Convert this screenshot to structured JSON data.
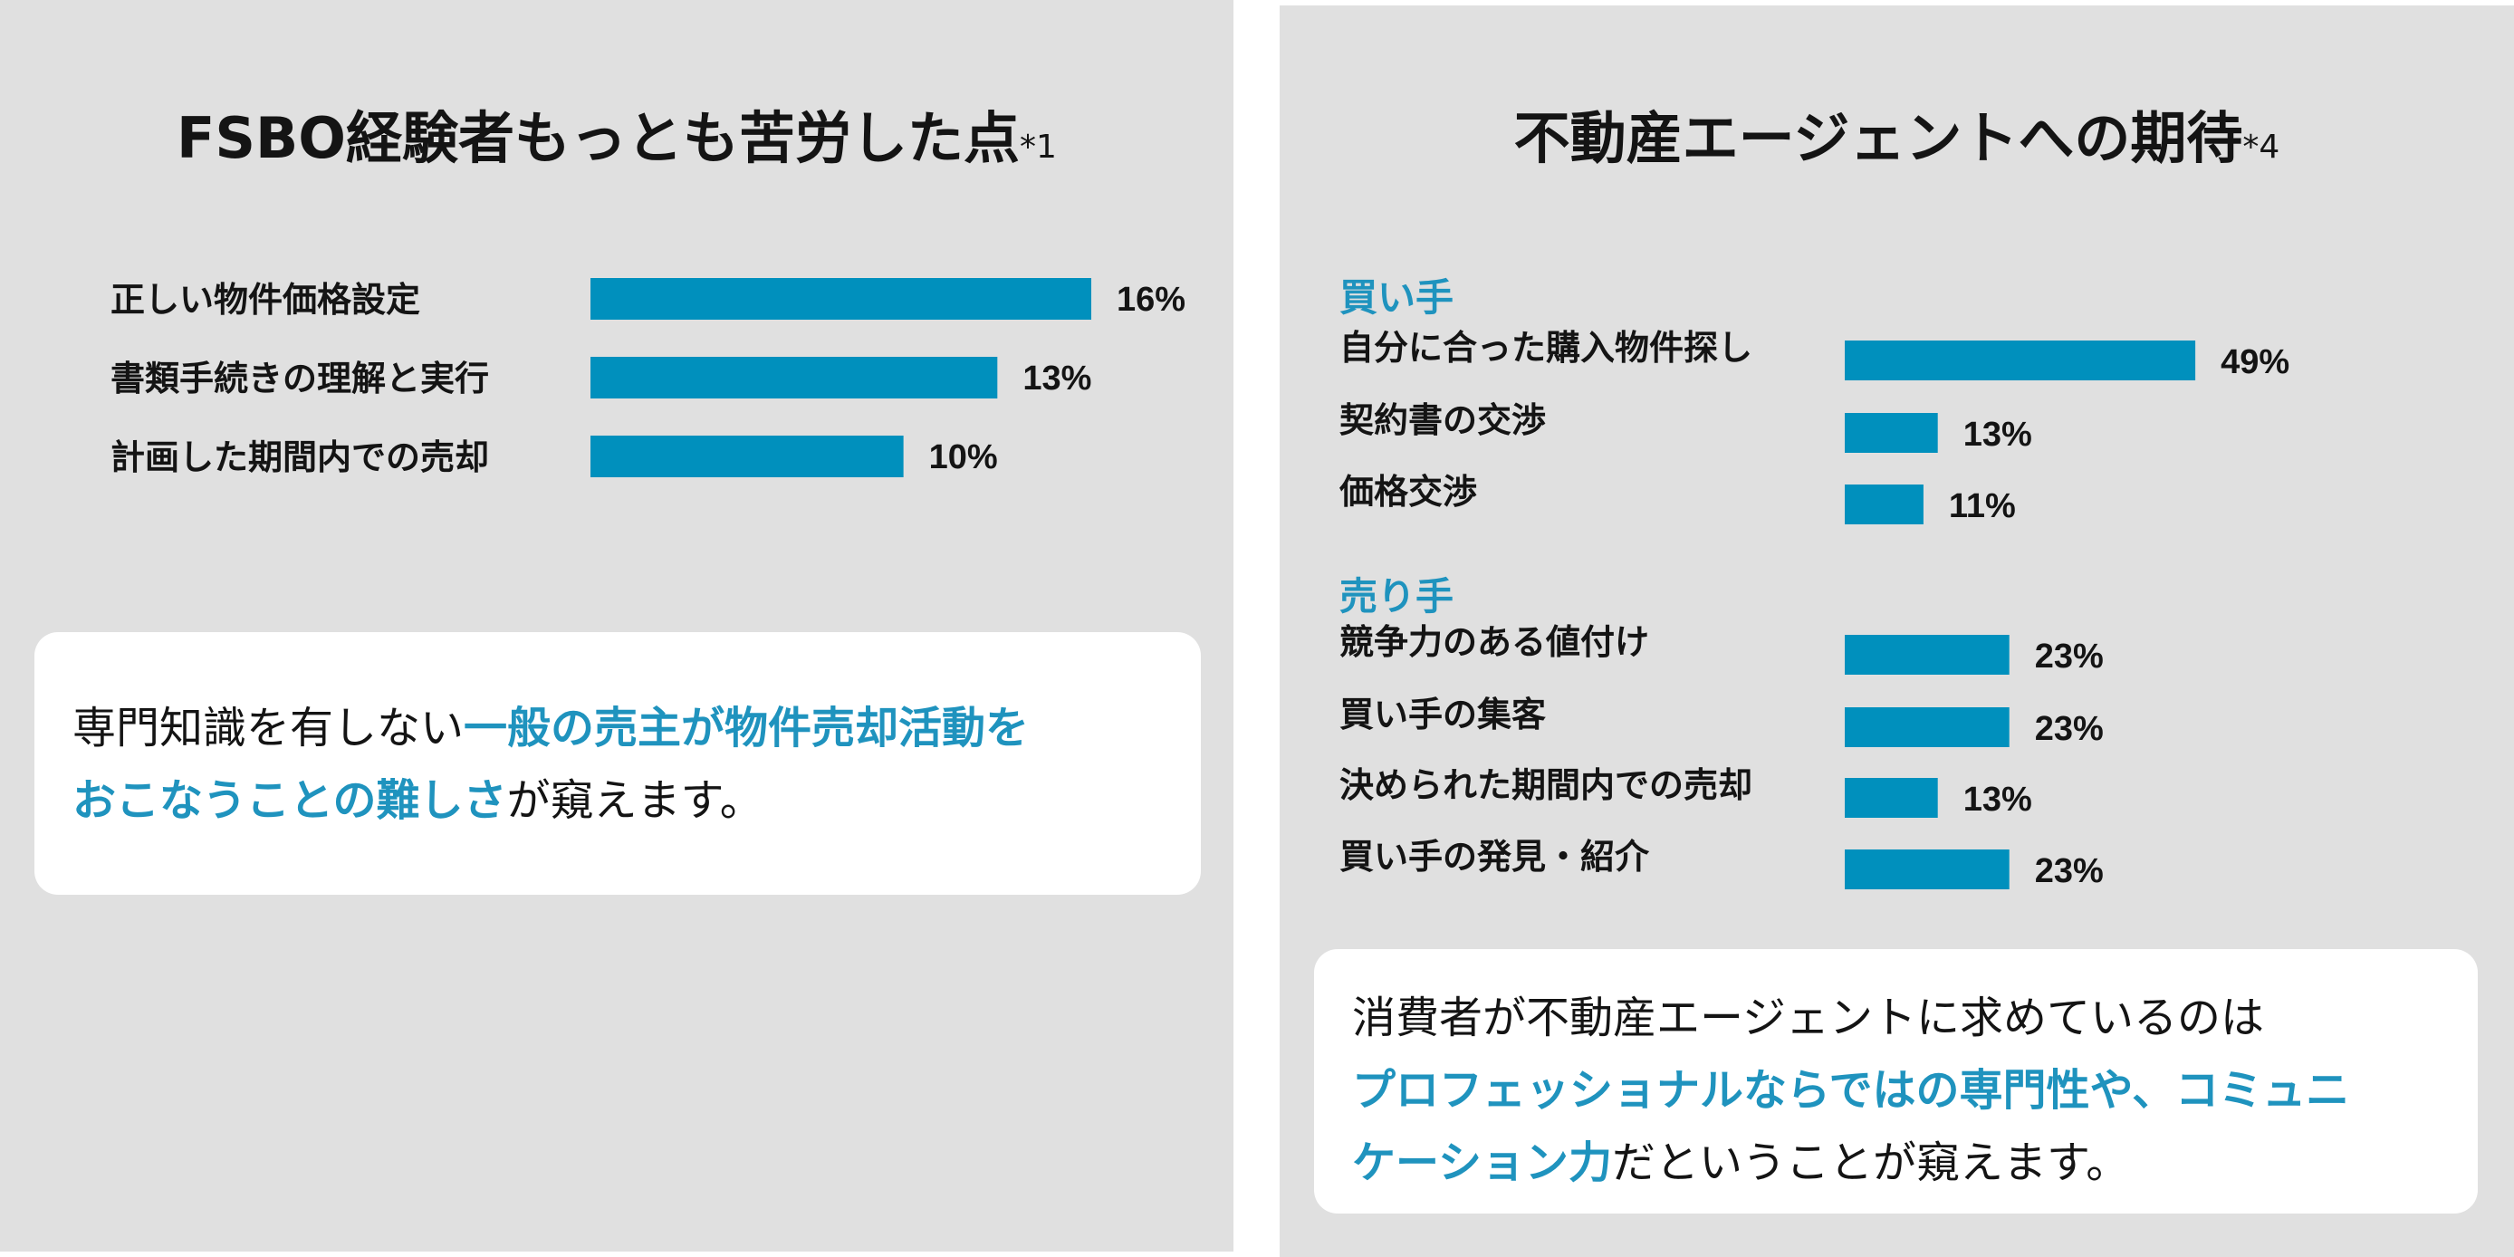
{
  "colors": {
    "bar": "#0090bd",
    "accent": "#1f93be",
    "panel_bg": "#e0e0e0",
    "card_bg": "#ffffff",
    "text": "#141414"
  },
  "left": {
    "title": "FSBO経験者もっとも苦労した点",
    "title_note": "*1",
    "card": {
      "text_1": "専門知識を有しない",
      "highlight": "一般の売主が物件売却活動を\nおこなうことの難しさ",
      "text_2": "が窺えます。"
    }
  },
  "right": {
    "title": "不動産エージェントへの期待",
    "title_note": "*4",
    "card": {
      "text_1": "消費者が不動産エージェントに求めているのは\n",
      "highlight": "プロフェッショナルならではの専門性や、コミュニ\nケーション力",
      "text_2": "だということが窺えます。"
    }
  },
  "chart_data": [
    {
      "type": "bar",
      "orientation": "horizontal",
      "title": "FSBO経験者もっとも苦労した点*1",
      "categories": [
        "正しい物件価格設定",
        "書類手続きの理解と実行",
        "計画した期間内での売却"
      ],
      "values": [
        16,
        13,
        10
      ],
      "value_labels": [
        "16%",
        "13%",
        "10%"
      ],
      "unit": "%"
    },
    {
      "type": "bar",
      "orientation": "horizontal",
      "title": "不動産エージェントへの期待*4",
      "groups": [
        {
          "name": "買い手",
          "categories": [
            "自分に合った購入物件探し",
            "契約書の交渉",
            "価格交渉"
          ],
          "values": [
            49,
            13,
            11
          ],
          "value_labels": [
            "49%",
            "13%",
            "11%"
          ]
        },
        {
          "name": "売り手",
          "categories": [
            "競争力のある値付け",
            "買い手の集客",
            "決められた期間内での売却",
            "買い手の発見・紹介"
          ],
          "values": [
            23,
            23,
            13,
            23
          ],
          "value_labels": [
            "23%",
            "23%",
            "13%",
            "23%"
          ]
        }
      ],
      "unit": "%"
    }
  ]
}
